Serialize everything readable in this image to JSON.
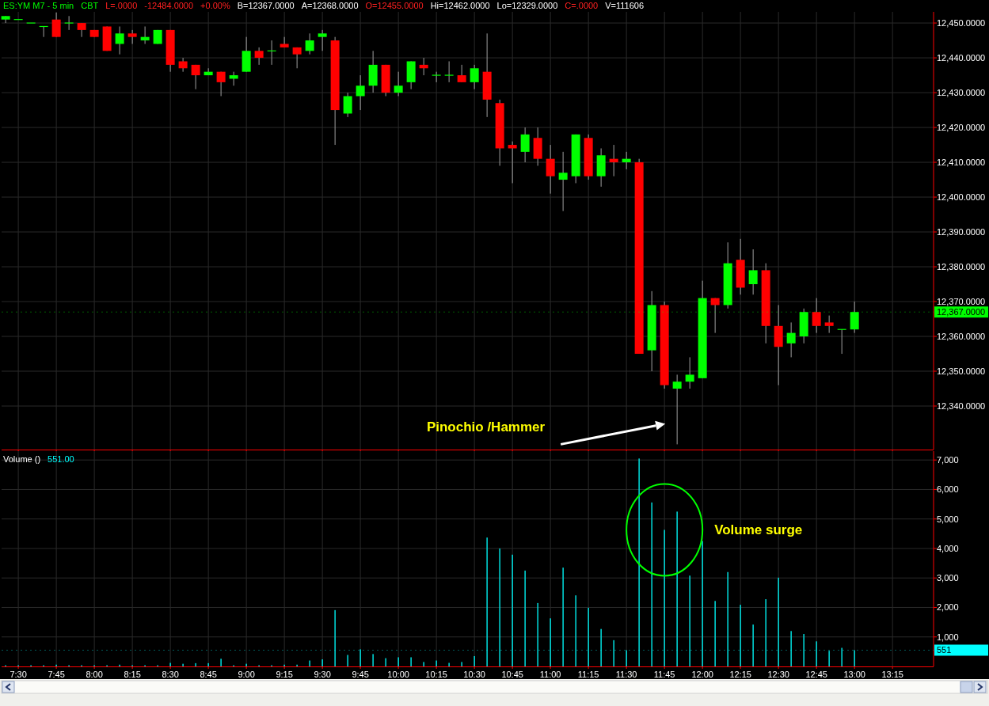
{
  "chart_data": [
    {
      "type": "candlestick",
      "annotations": [
        "ES:YM M7 - 5 min",
        "CBT",
        "L=.0000",
        "-12484.0000",
        "+0.00%",
        "B=12367.0000",
        "A=12368.0000",
        "O=12455.0000",
        "Hi=12462.0000",
        "Lo=12329.0000",
        "C=.0000",
        "V=111606",
        "Pinochio /Hammer"
      ],
      "x": [
        7.4167,
        7.5,
        7.5833,
        7.6667,
        7.75,
        7.8333,
        7.9167,
        8,
        8.0833,
        8.1667,
        8.25,
        8.3333,
        8.4167,
        8.5,
        8.5833,
        8.6667,
        8.75,
        8.8333,
        8.9167,
        9,
        9.0833,
        9.1667,
        9.25,
        9.3333,
        9.4167,
        9.5,
        9.5833,
        9.6667,
        9.75,
        9.8333,
        9.9167,
        10,
        10.0833,
        10.1667,
        10.25,
        10.3333,
        10.4167,
        10.5,
        10.5833,
        10.6667,
        10.75,
        10.8333,
        10.9167,
        11,
        11.0833,
        11.1667,
        11.25,
        11.3333,
        11.4167,
        11.5,
        11.5833,
        11.6667,
        11.75,
        11.8333,
        11.9167,
        12,
        12.0833,
        12.1667,
        12.25,
        12.3333,
        12.4167,
        12.5,
        12.5833,
        12.6667,
        12.75,
        12.8333,
        12.9167,
        13
      ],
      "ohlc": [
        [
          12451,
          12452,
          12450,
          12452
        ],
        [
          12451,
          12451,
          12451,
          12451
        ],
        [
          12450,
          12450,
          12450,
          12450
        ],
        [
          12449,
          12449,
          12446,
          12449
        ],
        [
          12451,
          12453,
          12446,
          12446
        ],
        [
          12450,
          12452,
          12448,
          12450
        ],
        [
          12450,
          12450,
          12446,
          12448
        ],
        [
          12448,
          12448,
          12446,
          12446
        ],
        [
          12449,
          12449,
          12442,
          12442
        ],
        [
          12444,
          12449,
          12441,
          12447
        ],
        [
          12447,
          12448,
          12444,
          12446
        ],
        [
          12445,
          12449,
          12444,
          12446
        ],
        [
          12444,
          12448,
          12444,
          12448
        ],
        [
          12448,
          12448,
          12436,
          12438
        ],
        [
          12439,
          12440,
          12436,
          12437
        ],
        [
          12438,
          12438,
          12431,
          12435
        ],
        [
          12435,
          12437,
          12435,
          12436
        ],
        [
          12436,
          12436,
          12429,
          12433
        ],
        [
          12434,
          12436,
          12432,
          12435
        ],
        [
          12436,
          12446,
          12436,
          12442
        ],
        [
          12442,
          12443,
          12438,
          12440
        ],
        [
          12442,
          12445,
          12438,
          12442
        ],
        [
          12444,
          12446,
          12443,
          12443
        ],
        [
          12443,
          12443,
          12437,
          12441
        ],
        [
          12442,
          12447,
          12441,
          12445
        ],
        [
          12446,
          12448,
          12442,
          12447
        ],
        [
          12445,
          12446,
          12415,
          12425
        ],
        [
          12424,
          12430,
          12423,
          12429
        ],
        [
          12429,
          12435,
          12425,
          12432
        ],
        [
          12432,
          12442,
          12430,
          12438
        ],
        [
          12438,
          12438,
          12429,
          12430
        ],
        [
          12430,
          12436,
          12429,
          12432
        ],
        [
          12433,
          12439,
          12431,
          12439
        ],
        [
          12438,
          12440,
          12435,
          12437
        ],
        [
          12435,
          12436,
          12433,
          12435
        ],
        [
          12435,
          12439,
          12433,
          12435
        ],
        [
          12435,
          12438,
          12433,
          12433
        ],
        [
          12433,
          12438,
          12431,
          12437
        ],
        [
          12436,
          12447,
          12423,
          12428
        ],
        [
          12427,
          12428,
          12409,
          12414
        ],
        [
          12415,
          12416,
          12404,
          12414
        ],
        [
          12413,
          12420,
          12410,
          12418
        ],
        [
          12417,
          12420,
          12409,
          12411
        ],
        [
          12411,
          12415,
          12401,
          12406
        ],
        [
          12405,
          12413,
          12396,
          12407
        ],
        [
          12406,
          12418,
          12404,
          12418
        ],
        [
          12417,
          12418,
          12405,
          12406
        ],
        [
          12406,
          12414,
          12403,
          12412
        ],
        [
          12411,
          12415,
          12406,
          12410
        ],
        [
          12410,
          12413,
          12408,
          12411
        ],
        [
          12410,
          12411,
          12355,
          12355
        ],
        [
          12356,
          12373,
          12350,
          12369
        ],
        [
          12369,
          12370,
          12345,
          12346
        ],
        [
          12345,
          12349,
          12329,
          12347
        ],
        [
          12347,
          12354,
          12345,
          12349
        ],
        [
          12348,
          12376,
          12348,
          12371
        ],
        [
          12371,
          12371,
          12361,
          12369
        ],
        [
          12369,
          12387,
          12368,
          12381
        ],
        [
          12382,
          12388,
          12372,
          12374
        ],
        [
          12375,
          12385,
          12372,
          12379
        ],
        [
          12379,
          12381,
          12358,
          12363
        ],
        [
          12363,
          12369,
          12346,
          12357
        ],
        [
          12358,
          12364,
          12354,
          12361
        ],
        [
          12360,
          12368,
          12358,
          12367
        ],
        [
          12367,
          12371,
          12361,
          12363
        ],
        [
          12364,
          12366,
          12361,
          12363
        ],
        [
          12362,
          12362,
          12355,
          12362
        ],
        [
          12362,
          12370,
          12361,
          12367
        ]
      ],
      "xlim": [
        7.39,
        13.52
      ],
      "ylim": [
        12327.5,
        12453.2
      ],
      "xticks": [
        {
          "value": 7.5,
          "label": null
        },
        {
          "value": 7.75,
          "label": null
        },
        {
          "value": 8,
          "label": null
        },
        {
          "value": 8.25,
          "label": null
        },
        {
          "value": 8.5,
          "label": null
        },
        {
          "value": 8.75,
          "label": null
        },
        {
          "value": 9,
          "label": null
        },
        {
          "value": 9.25,
          "label": null
        },
        {
          "value": 9.5,
          "label": null
        },
        {
          "value": 9.75,
          "label": null
        },
        {
          "value": 10,
          "label": null
        },
        {
          "value": 10.25,
          "label": null
        },
        {
          "value": 10.5,
          "label": null
        },
        {
          "value": 10.75,
          "label": null
        },
        {
          "value": 11,
          "label": null
        },
        {
          "value": 11.25,
          "label": null
        },
        {
          "value": 11.5,
          "label": null
        },
        {
          "value": 11.75,
          "label": null
        },
        {
          "value": 12,
          "label": null
        },
        {
          "value": 12.25,
          "label": null
        },
        {
          "value": 12.5,
          "label": null
        },
        {
          "value": 12.75,
          "label": null
        },
        {
          "value": 13,
          "label": null
        },
        {
          "value": 13.25,
          "label": null
        }
      ],
      "yticks": [
        {
          "value": 12340,
          "label": "12,340.0000"
        },
        {
          "value": 12350,
          "label": "12,350.0000"
        },
        {
          "value": 12360,
          "label": "12,360.0000"
        },
        {
          "value": 12370,
          "label": "12,370.0000"
        },
        {
          "value": 12380,
          "label": "12,380.0000"
        },
        {
          "value": 12390,
          "label": "12,390.0000"
        },
        {
          "value": 12400,
          "label": "12,400.0000"
        },
        {
          "value": 12410,
          "label": "12,410.0000"
        },
        {
          "value": 12420,
          "label": "12,420.0000"
        },
        {
          "value": 12430,
          "label": "12,430.0000"
        },
        {
          "value": 12440,
          "label": "12,440.0000"
        },
        {
          "value": 12450,
          "label": "12,450.0000"
        }
      ],
      "ref_lines": [
        {
          "axis": "y",
          "value": 12367,
          "label": "12,367.0000",
          "color": "#00ff00"
        }
      ],
      "grid": true,
      "tick_labels": "y"
    },
    {
      "type": "bar",
      "title": "Volume ()",
      "subtitle": "551.00",
      "color": "#00e0e0",
      "annotations": [
        "Volume surge"
      ],
      "x": [
        7.4167,
        7.5,
        7.5833,
        7.6667,
        7.75,
        7.8333,
        7.9167,
        8,
        8.0833,
        8.1667,
        8.25,
        8.3333,
        8.4167,
        8.5,
        8.5833,
        8.6667,
        8.75,
        8.8333,
        8.9167,
        9,
        9.0833,
        9.1667,
        9.25,
        9.3333,
        9.4167,
        9.5,
        9.5833,
        9.6667,
        9.75,
        9.8333,
        9.9167,
        10,
        10.0833,
        10.1667,
        10.25,
        10.3333,
        10.4167,
        10.5,
        10.5833,
        10.6667,
        10.75,
        10.8333,
        10.9167,
        11,
        11.0833,
        11.1667,
        11.25,
        11.3333,
        11.4167,
        11.5,
        11.5833,
        11.6667,
        11.75,
        11.8333,
        11.9167,
        12,
        12.0833,
        12.1667,
        12.25,
        12.3333,
        12.4167,
        12.5,
        12.5833,
        12.6667,
        12.75,
        12.8333,
        12.9167,
        13
      ],
      "values": [
        40,
        40,
        40,
        40,
        60,
        40,
        40,
        40,
        40,
        60,
        40,
        40,
        40,
        120,
        90,
        110,
        110,
        260,
        40,
        90,
        40,
        40,
        60,
        60,
        200,
        240,
        1910,
        390,
        580,
        420,
        280,
        310,
        310,
        150,
        200,
        120,
        150,
        350,
        4370,
        4000,
        3790,
        3250,
        2150,
        1630,
        3350,
        2410,
        1990,
        1270,
        890,
        550,
        7050,
        5560,
        4630,
        5250,
        3080,
        4250,
        2220,
        3200,
        2090,
        1420,
        2280,
        3010,
        1200,
        1100,
        850,
        530,
        630,
        551
      ],
      "xlim": [
        7.39,
        13.52
      ],
      "ylim": [
        0,
        7300
      ],
      "xticks": [
        {
          "value": 7.5,
          "label": "7:30"
        },
        {
          "value": 7.75,
          "label": "7:45"
        },
        {
          "value": 8,
          "label": "8:00"
        },
        {
          "value": 8.25,
          "label": "8:15"
        },
        {
          "value": 8.5,
          "label": "8:30"
        },
        {
          "value": 8.75,
          "label": "8:45"
        },
        {
          "value": 9,
          "label": "9:00"
        },
        {
          "value": 9.25,
          "label": "9:15"
        },
        {
          "value": 9.5,
          "label": "9:30"
        },
        {
          "value": 9.75,
          "label": "9:45"
        },
        {
          "value": 10,
          "label": "10:00"
        },
        {
          "value": 10.25,
          "label": "10:15"
        },
        {
          "value": 10.5,
          "label": "10:30"
        },
        {
          "value": 10.75,
          "label": "10:45"
        },
        {
          "value": 11,
          "label": "11:00"
        },
        {
          "value": 11.25,
          "label": "11:15"
        },
        {
          "value": 11.5,
          "label": "11:30"
        },
        {
          "value": 11.75,
          "label": "11:45"
        },
        {
          "value": 12,
          "label": "12:00"
        },
        {
          "value": 12.25,
          "label": "12:15"
        },
        {
          "value": 12.5,
          "label": "12:30"
        },
        {
          "value": 12.75,
          "label": "12:45"
        },
        {
          "value": 13,
          "label": "13:00"
        },
        {
          "value": 13.25,
          "label": "13:15"
        }
      ],
      "yticks": [
        {
          "value": 1000,
          "label": "1,000"
        },
        {
          "value": 2000,
          "label": "2,000"
        },
        {
          "value": 3000,
          "label": "3,000"
        },
        {
          "value": 4000,
          "label": "4,000"
        },
        {
          "value": 5000,
          "label": "5,000"
        },
        {
          "value": 6000,
          "label": "6,000"
        },
        {
          "value": 7000,
          "label": "7,000"
        }
      ],
      "ref_lines": [
        {
          "axis": "y",
          "value": 551,
          "label": "551",
          "color": "#00ffff"
        }
      ],
      "grid": true
    }
  ]
}
